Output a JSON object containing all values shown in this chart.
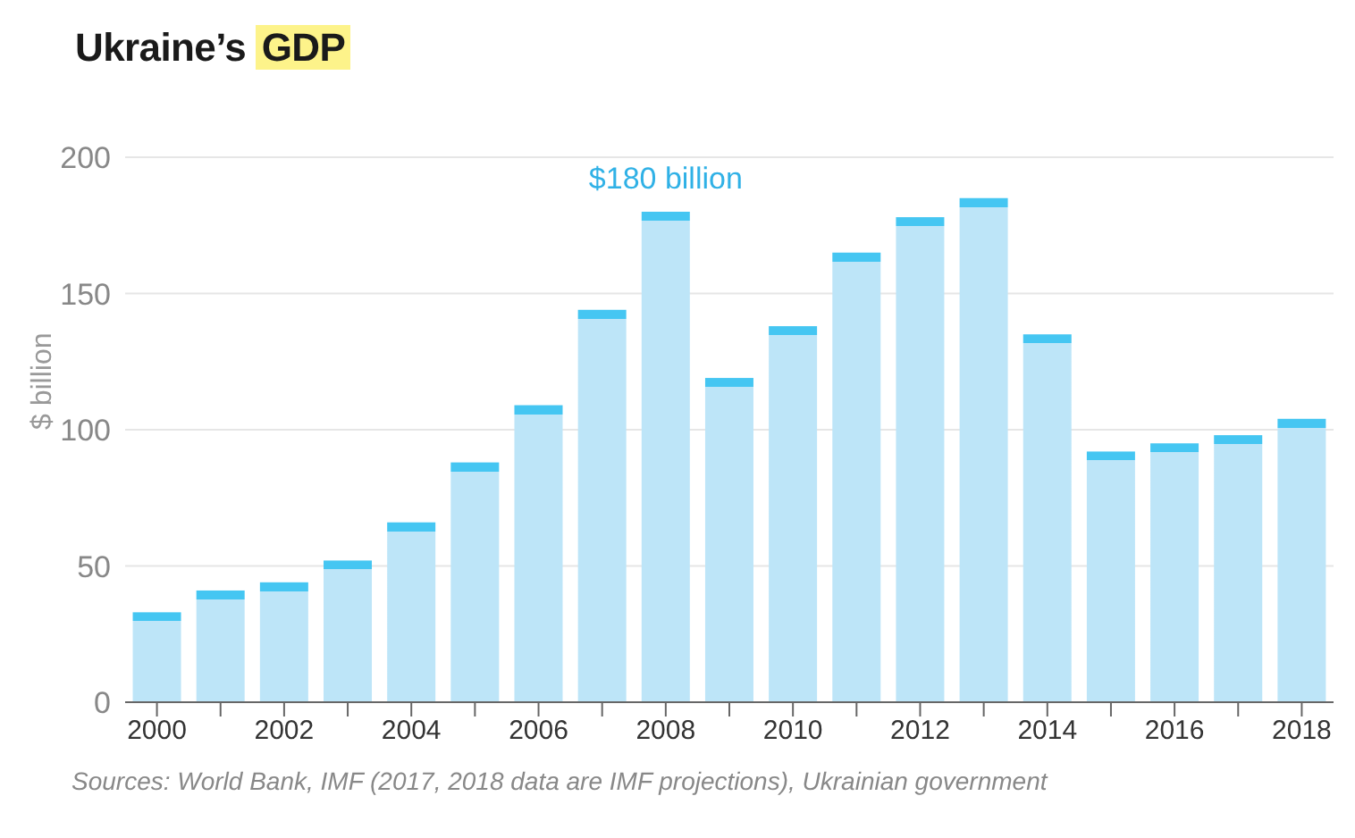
{
  "chart_data": {
    "type": "bar",
    "title": "Ukraine’s GDP",
    "ylabel": "$ billion",
    "categories": [
      "2000",
      null,
      "2002",
      null,
      "2004",
      null,
      "2006",
      null,
      "2008",
      null,
      "2010",
      null,
      "2012",
      null,
      "2014",
      null,
      "2016",
      null,
      "2018"
    ],
    "series": [
      {
        "color": "#bde5f8",
        "values": [
          33,
          41,
          44,
          52,
          66,
          88,
          109,
          144,
          180,
          119,
          138,
          165,
          178,
          185,
          135,
          92,
          95,
          98,
          104
        ]
      }
    ],
    "ylim": [
      0,
      200
    ],
    "yticks": [
      0,
      50,
      100,
      150,
      200
    ],
    "grid": "y",
    "legend": false,
    "annotations": [
      {
        "text": "$180 billion",
        "x": "2008",
        "y": 180
      },
      "Sources: World Bank, IMF (2017, 2018 data are IMF projections), Ukrainian government"
    ]
  }
}
